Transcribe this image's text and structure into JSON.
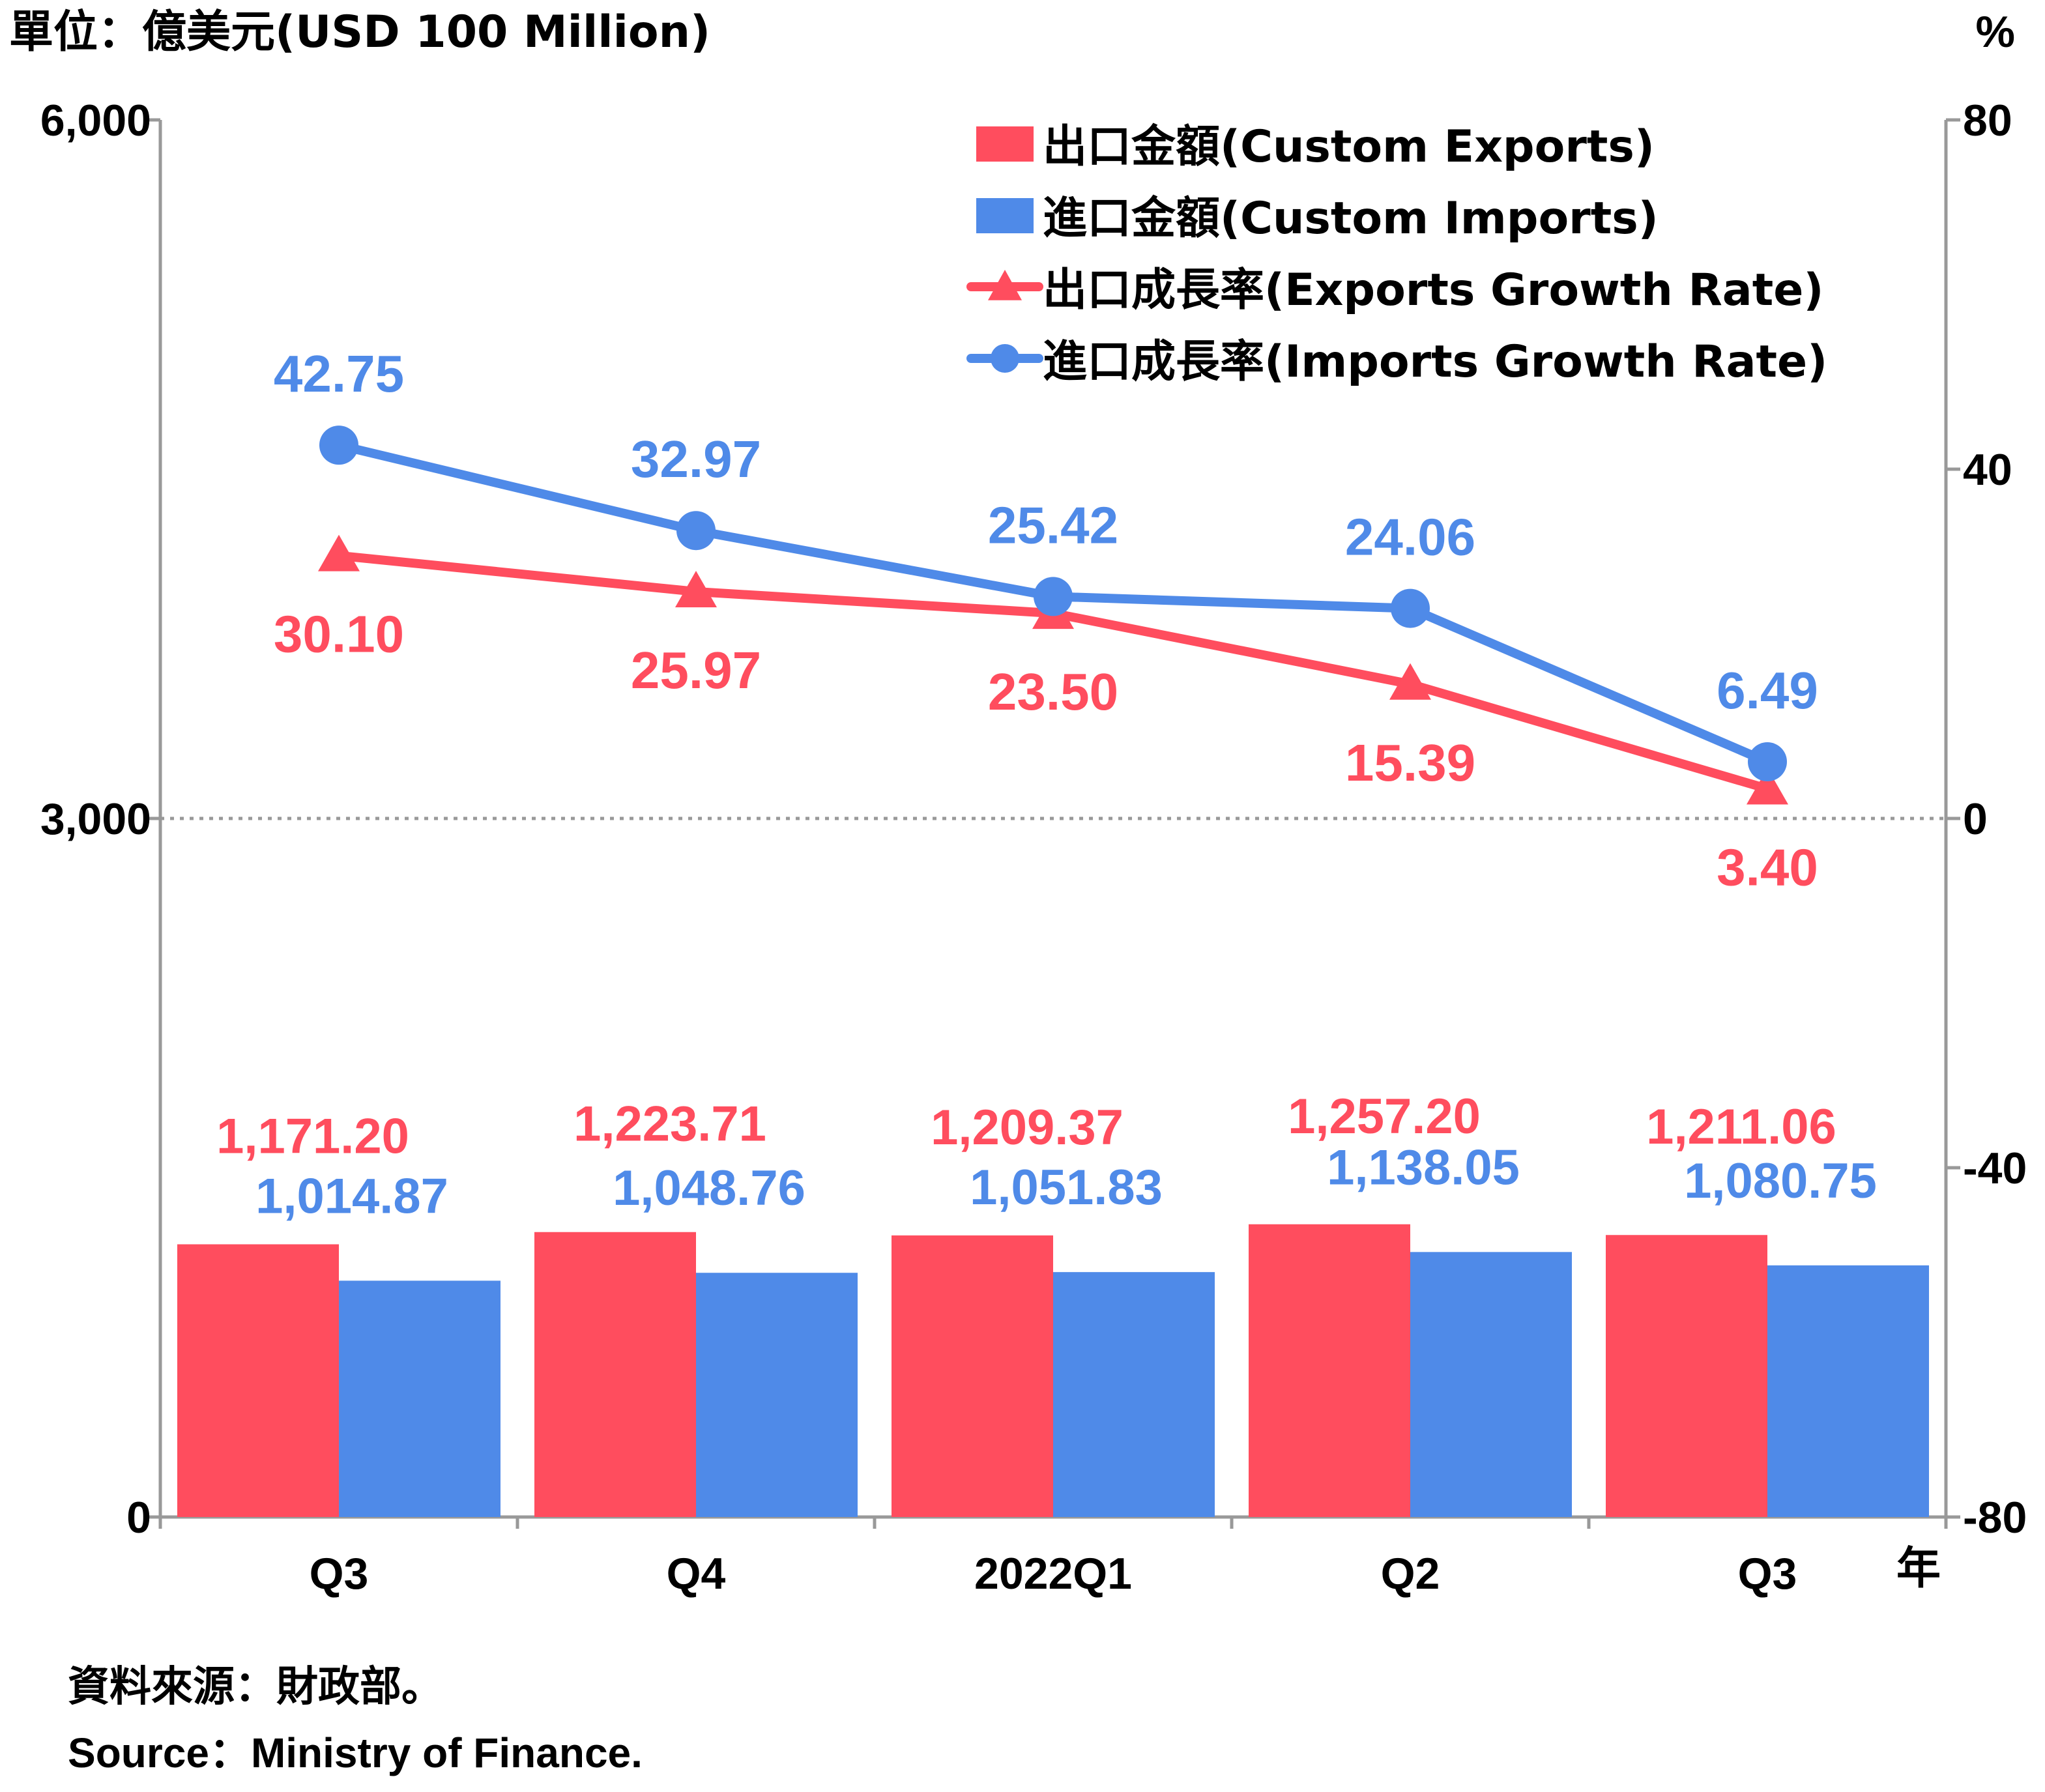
{
  "unit_left": "單位：億美元(USD 100 Million)",
  "unit_right": "%",
  "year_label": "年",
  "source_zh": "資料來源：財政部。",
  "source_en": "Source：Ministry of Finance.",
  "colors": {
    "exports": "#ff4d5e",
    "imports": "#4f8ae8",
    "axis": "#999999",
    "text": "#000000"
  },
  "chart_data": {
    "type": "bar",
    "categories": [
      "Q3",
      "Q4",
      "2022Q1",
      "Q2",
      "Q3"
    ],
    "y_left": {
      "min": 0,
      "max": 6000,
      "ticks": [
        0,
        3000,
        6000
      ],
      "tick_labels": [
        "0",
        "3,000",
        "6,000"
      ]
    },
    "y_right": {
      "min": -80,
      "max": 80,
      "ticks": [
        -80,
        -40,
        0,
        40,
        80
      ],
      "tick_labels": [
        "-80",
        "-40",
        "0",
        "40",
        "80"
      ]
    },
    "legend_position": "top-right",
    "zero_line": "dotted",
    "series": [
      {
        "name": "出口金額(Custom Exports)",
        "kind": "bar",
        "axis": "left",
        "values": [
          1171.2,
          1223.71,
          1209.37,
          1257.2,
          1211.06
        ],
        "labels": [
          "1,171.20",
          "1,223.71",
          "1,209.37",
          "1,257.20",
          "1,211.06"
        ]
      },
      {
        "name": "進口金額(Custom Imports)",
        "kind": "bar",
        "axis": "left",
        "values": [
          1014.87,
          1048.76,
          1051.83,
          1138.05,
          1080.75
        ],
        "labels": [
          "1,014.87",
          "1,048.76",
          "1,051.83",
          "1,138.05",
          "1,080.75"
        ]
      },
      {
        "name": "出口成長率(Exports Growth Rate)",
        "kind": "line",
        "marker": "triangle",
        "axis": "right",
        "values": [
          30.1,
          25.97,
          23.5,
          15.39,
          3.4
        ],
        "labels": [
          "30.10",
          "25.97",
          "23.50",
          "15.39",
          "3.40"
        ]
      },
      {
        "name": "進口成長率(Imports Growth Rate)",
        "kind": "line",
        "marker": "circle",
        "axis": "right",
        "values": [
          42.75,
          32.97,
          25.42,
          24.06,
          6.49
        ],
        "labels": [
          "42.75",
          "32.97",
          "25.42",
          "24.06",
          "6.49"
        ]
      }
    ]
  }
}
